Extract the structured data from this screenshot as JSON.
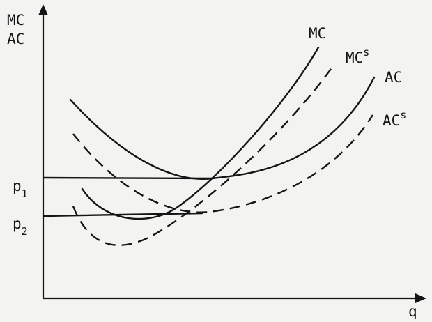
{
  "axes": {
    "y_label_line1": "MC",
    "y_label_line2": "AC",
    "x_label": "q"
  },
  "price_levels": [
    {
      "letter": "p",
      "subscript": "1"
    },
    {
      "letter": "p",
      "subscript": "2"
    }
  ],
  "curves": [
    {
      "base": "MC",
      "superscript": "",
      "style": "solid"
    },
    {
      "base": "MC",
      "superscript": "s",
      "style": "dashed"
    },
    {
      "base": "AC",
      "superscript": "",
      "style": "solid"
    },
    {
      "base": "AC",
      "superscript": "s",
      "style": "dashed"
    }
  ],
  "colors": {
    "ink": "#141414",
    "paper": "#f3f3f1"
  }
}
